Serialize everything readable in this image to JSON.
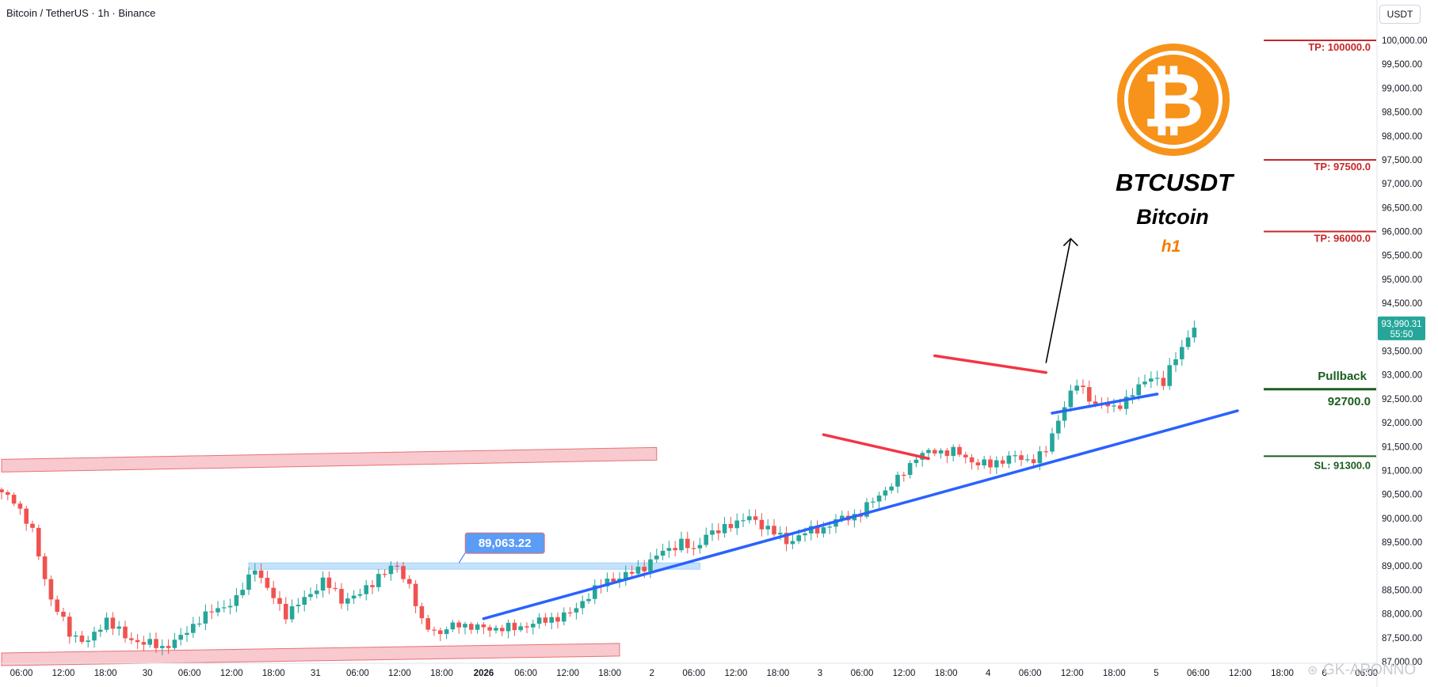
{
  "header": {
    "title": "Bitcoin / TetherUS · 1h · Binance",
    "currency": "USDT"
  },
  "brand": {
    "symbol_glyph": "₿",
    "ticker": "BTCUSDT",
    "name": "Bitcoin",
    "timeframe": "h1",
    "accent": "#f7931a",
    "timeframe_color": "#f57c00"
  },
  "watermark": "GK-ARONNO",
  "colors": {
    "up": "#26a69a",
    "down": "#ef5350",
    "channel_fill": "#f8c9ce",
    "channel_stroke": "#e57373",
    "trend_blue": "#2962ff",
    "wedge_red": "#f23645",
    "tp_red": "#c62828",
    "sl_green": "#1b5e20",
    "level_blue": "#bbdefb"
  },
  "chart_data": {
    "type": "candlestick",
    "symbol": "Bitcoin / TetherUS",
    "interval": "1h",
    "exchange": "Binance",
    "ylim": [
      87000,
      100250
    ],
    "y_ticks": [
      "100,000.00",
      "99,500.00",
      "99,000.00",
      "98,500.00",
      "98,000.00",
      "97,500.00",
      "97,000.00",
      "96,500.00",
      "96,000.00",
      "95,500.00",
      "95,000.00",
      "94,500.00",
      "94,000.00",
      "93,500.00",
      "93,000.00",
      "92,500.00",
      "92,000.00",
      "91,500.00",
      "91,000.00",
      "90,500.00",
      "90,000.00",
      "89,500.00",
      "89,000.00",
      "88,500.00",
      "88,000.00",
      "87,500.00",
      "87,000.00"
    ],
    "x_ticks": [
      "06:00",
      "12:00",
      "18:00",
      "30",
      "06:00",
      "12:00",
      "18:00",
      "31",
      "06:00",
      "12:00",
      "18:00",
      "2026",
      "06:00",
      "12:00",
      "18:00",
      "2",
      "06:00",
      "12:00",
      "18:00",
      "3",
      "06:00",
      "12:00",
      "18:00",
      "4",
      "06:00",
      "12:00",
      "18:00",
      "5",
      "06:00",
      "12:00",
      "18:00",
      "6",
      "06:00"
    ],
    "current_price": {
      "label": "93,990.31",
      "countdown": "55:50",
      "value": 93990.31
    },
    "series": [
      {
        "anchors": [
          [
            0,
            90500
          ],
          [
            2,
            90400
          ],
          [
            5,
            89700
          ],
          [
            8,
            88300
          ],
          [
            11,
            87600
          ],
          [
            14,
            87400
          ],
          [
            17,
            87900
          ],
          [
            20,
            87500
          ],
          [
            23,
            87400
          ],
          [
            26,
            87300
          ],
          [
            29,
            87500
          ],
          [
            32,
            87900
          ],
          [
            35,
            88100
          ],
          [
            38,
            88300
          ],
          [
            41,
            89000
          ],
          [
            43,
            88500
          ],
          [
            46,
            88000
          ],
          [
            49,
            88300
          ],
          [
            52,
            88700
          ],
          [
            55,
            88300
          ],
          [
            58,
            88400
          ],
          [
            61,
            88800
          ],
          [
            64,
            89000
          ],
          [
            66,
            88600
          ],
          [
            68,
            87800
          ],
          [
            71,
            87600
          ],
          [
            74,
            87800
          ],
          [
            77,
            87700
          ],
          [
            80,
            87700
          ],
          [
            83,
            87700
          ],
          [
            86,
            87800
          ],
          [
            89,
            87900
          ],
          [
            92,
            88000
          ],
          [
            95,
            88400
          ],
          [
            98,
            88700
          ],
          [
            101,
            88800
          ],
          [
            104,
            89000
          ],
          [
            107,
            89300
          ],
          [
            110,
            89500
          ],
          [
            112,
            89300
          ],
          [
            114,
            89700
          ],
          [
            116,
            89700
          ],
          [
            118,
            89900
          ],
          [
            121,
            90000
          ],
          [
            124,
            89800
          ],
          [
            127,
            89500
          ],
          [
            130,
            89700
          ],
          [
            133,
            89800
          ],
          [
            136,
            90000
          ],
          [
            139,
            90100
          ],
          [
            142,
            90500
          ],
          [
            145,
            90800
          ],
          [
            148,
            91300
          ],
          [
            151,
            91400
          ],
          [
            154,
            91400
          ],
          [
            157,
            91200
          ],
          [
            160,
            91100
          ],
          [
            163,
            91300
          ],
          [
            166,
            91200
          ],
          [
            169,
            91400
          ],
          [
            172,
            92400
          ],
          [
            174,
            92800
          ],
          [
            177,
            92400
          ],
          [
            180,
            92300
          ],
          [
            183,
            92600
          ],
          [
            186,
            93000
          ],
          [
            188,
            92800
          ],
          [
            190,
            93400
          ],
          [
            193,
            93990
          ]
        ]
      }
    ],
    "price_levels": [
      {
        "label": "TP: 100000.0",
        "value": 100000,
        "kind": "tp"
      },
      {
        "label": "TP: 97500.0",
        "value": 97500,
        "kind": "tp"
      },
      {
        "label": "TP: 96000.0",
        "value": 96000,
        "kind": "tp"
      },
      {
        "label": "Pullback",
        "value": 92700,
        "kind": "entry",
        "price_label": "92700.0"
      },
      {
        "label": "SL: 91300.0",
        "value": 91300,
        "kind": "sl"
      }
    ],
    "annotations": {
      "level_callout": "89,063.22",
      "support_level": 89000
    },
    "channel": {
      "upper": [
        [
          0,
          91100
        ],
        [
          106,
          91350
        ]
      ],
      "lower": [
        [
          0,
          87050
        ],
        [
          100,
          87250
        ]
      ]
    },
    "trendlines": [
      {
        "color": "blue",
        "from": [
          78,
          87900
        ],
        "to": [
          200,
          92250
        ]
      },
      {
        "color": "blue",
        "from": [
          170,
          92200
        ],
        "to": [
          187,
          92600
        ]
      },
      {
        "color": "red",
        "from": [
          133,
          91750
        ],
        "to": [
          150,
          91250
        ]
      },
      {
        "color": "red",
        "from": [
          151,
          93400
        ],
        "to": [
          169,
          93050
        ]
      }
    ],
    "projection_arrow": {
      "from": [
        169,
        93250
      ],
      "to": [
        173,
        95850
      ]
    }
  }
}
